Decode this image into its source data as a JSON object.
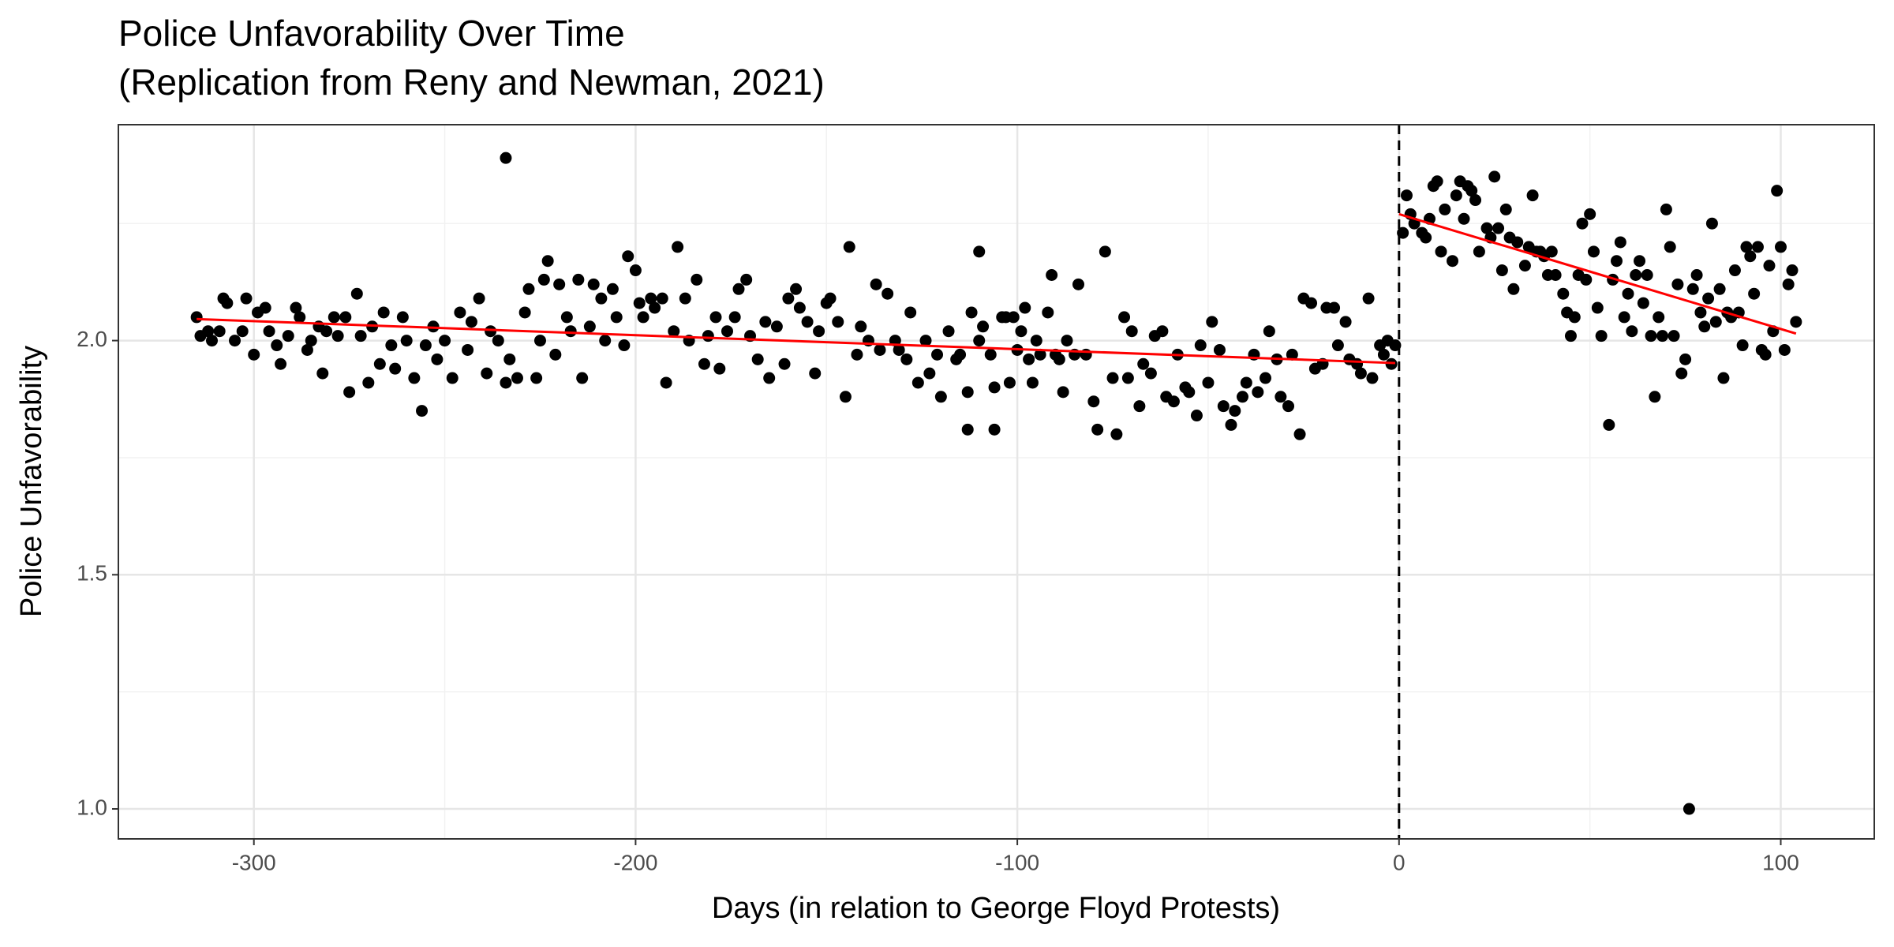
{
  "chart_data": {
    "type": "scatter",
    "title": "Police Unfavorability Over Time",
    "subtitle": "(Replication from Reny and Newman, 2021)",
    "x_label": "Days (in relation to George Floyd Protests)",
    "y_label": "Police Unfavorability",
    "xlim": [
      -335.5,
      124.5
    ],
    "ylim": [
      0.936,
      2.461
    ],
    "xticks": [
      -300,
      -200,
      -100,
      0,
      100
    ],
    "yticks": [
      {
        "value": 1,
        "label": "1.0"
      },
      {
        "value": 1.5,
        "label": "1.5"
      },
      {
        "value": 2,
        "label": "2.0"
      }
    ],
    "xminor": [
      -250,
      -150,
      -50,
      50
    ],
    "yminor": [
      1.25,
      1.75,
      2.25
    ],
    "grid": true,
    "vline": 0,
    "series": [
      {
        "color": "#000000",
        "x": [
          -315,
          -314,
          -312,
          -311,
          -309,
          -308,
          -307,
          -305,
          -303,
          -302,
          -300,
          -299,
          -297,
          -296,
          -294,
          -293,
          -291,
          -289,
          -288,
          -286,
          -285,
          -283,
          -282,
          -281,
          -279,
          -278,
          -276,
          -275,
          -273,
          -272,
          -270,
          -269,
          -267,
          -266,
          -264,
          -263,
          -261,
          -260,
          -258,
          -256,
          -255,
          -253,
          -252,
          -250,
          -248,
          -246,
          -244,
          -243,
          -241,
          -239,
          -238,
          -236,
          -234,
          -233,
          -231,
          -229,
          -228,
          -226,
          -225,
          -234,
          -224,
          -223,
          -221,
          -220,
          -218,
          -217,
          -215,
          -214,
          -212,
          -211,
          -209,
          -208,
          -206,
          -205,
          -203,
          -202,
          -200,
          -199,
          -198,
          -196,
          -195,
          -193,
          -192,
          -190,
          -189,
          -187,
          -186,
          -184,
          -182,
          -181,
          -179,
          -178,
          -176,
          -174,
          -173,
          -171,
          -170,
          -168,
          -166,
          -165,
          -163,
          -161,
          -160,
          -158,
          -157,
          -155,
          -153,
          -152,
          -150,
          -149,
          -147,
          -145,
          -144,
          -142,
          -141,
          -139,
          -137,
          -136,
          -134,
          -132,
          -131,
          -129,
          -128,
          -126,
          -124,
          -123,
          -121,
          -120,
          -118,
          -116,
          -115,
          -113,
          -112,
          -110,
          -109,
          -107,
          -106,
          -104,
          -102,
          -100,
          -99,
          -97,
          -95,
          -94,
          -92,
          -90,
          -89,
          -87,
          -85,
          -84,
          -82,
          -80,
          -79,
          -77,
          -75,
          -74,
          -72,
          -113,
          -106,
          -110,
          -91,
          -101,
          -103,
          -98,
          -96,
          -88,
          -71,
          -70,
          -68,
          -67,
          -65,
          -64,
          -62,
          -61,
          -59,
          -58,
          -56,
          -55,
          -53,
          -52,
          -50,
          -49,
          -47,
          -46,
          -44,
          -43,
          -41,
          -40,
          -38,
          -37,
          -35,
          -34,
          -32,
          -31,
          -29,
          -28,
          -26,
          -25,
          -23,
          -22,
          -20,
          -19,
          -17,
          -16,
          -14,
          -13,
          -11,
          -10,
          -8,
          -7,
          -5,
          -4,
          -3,
          -2,
          -1,
          1,
          2,
          3,
          4,
          6,
          7,
          8,
          9,
          10,
          11,
          12,
          14,
          15,
          16,
          17,
          18,
          19,
          20,
          21,
          23,
          24,
          25,
          26,
          27,
          28,
          29,
          30,
          31,
          33,
          34,
          35,
          36,
          37,
          38,
          39,
          40,
          41,
          43,
          44,
          45,
          46,
          47,
          48,
          49,
          50,
          51,
          52,
          53,
          55,
          56,
          57,
          58,
          59,
          60,
          61,
          62,
          63,
          64,
          65,
          66,
          67,
          68,
          69,
          70,
          71,
          72,
          73,
          74,
          75,
          76,
          77,
          78,
          79,
          80,
          81,
          82,
          83,
          84,
          85,
          86,
          87,
          88,
          89,
          90,
          91,
          92,
          93,
          94,
          95,
          96,
          97,
          98,
          99,
          100,
          101,
          102,
          103,
          104
        ],
        "values": [
          2.05,
          2.01,
          2.02,
          2.0,
          2.02,
          2.09,
          2.08,
          2.0,
          2.02,
          2.09,
          1.97,
          2.06,
          2.07,
          2.02,
          1.99,
          1.95,
          2.01,
          2.07,
          2.05,
          1.98,
          2.0,
          2.03,
          1.93,
          2.02,
          2.05,
          2.01,
          2.05,
          1.89,
          2.1,
          2.01,
          1.91,
          2.03,
          1.95,
          2.06,
          1.99,
          1.94,
          2.05,
          2.0,
          1.92,
          1.85,
          1.99,
          2.03,
          1.96,
          2.0,
          1.92,
          2.06,
          1.98,
          2.04,
          2.09,
          1.93,
          2.02,
          2.0,
          1.91,
          1.96,
          1.92,
          2.06,
          2.11,
          1.92,
          2.0,
          2.39,
          2.13,
          2.17,
          1.97,
          2.12,
          2.05,
          2.02,
          2.13,
          1.92,
          2.03,
          2.12,
          2.09,
          2.0,
          2.11,
          2.05,
          1.99,
          2.18,
          2.15,
          2.08,
          2.05,
          2.09,
          2.07,
          2.09,
          1.91,
          2.02,
          2.2,
          2.09,
          2.0,
          2.13,
          1.95,
          2.01,
          2.05,
          1.94,
          2.02,
          2.05,
          2.11,
          2.13,
          2.01,
          1.96,
          2.04,
          1.92,
          2.03,
          1.95,
          2.09,
          2.11,
          2.07,
          2.04,
          1.93,
          2.02,
          2.08,
          2.09,
          2.04,
          1.88,
          2.2,
          1.97,
          2.03,
          2.0,
          2.12,
          1.98,
          2.1,
          2.0,
          1.98,
          1.96,
          2.06,
          1.91,
          2.0,
          1.93,
          1.97,
          1.88,
          2.02,
          1.96,
          1.97,
          1.89,
          2.06,
          2.0,
          2.03,
          1.97,
          1.9,
          2.05,
          1.91,
          1.98,
          2.02,
          1.96,
          2.0,
          1.97,
          2.06,
          1.97,
          1.96,
          2.0,
          1.97,
          2.12,
          1.97,
          1.87,
          1.81,
          2.19,
          1.92,
          1.8,
          2.05,
          1.81,
          1.81,
          2.19,
          2.14,
          2.05,
          2.05,
          2.07,
          1.91,
          1.89,
          1.92,
          2.02,
          1.86,
          1.95,
          1.93,
          2.01,
          2.02,
          1.88,
          1.87,
          1.97,
          1.9,
          1.89,
          1.84,
          1.99,
          1.91,
          2.04,
          1.98,
          1.86,
          1.82,
          1.85,
          1.88,
          1.91,
          1.97,
          1.89,
          1.92,
          2.02,
          1.96,
          1.88,
          1.86,
          1.97,
          1.8,
          2.09,
          2.08,
          1.94,
          1.95,
          2.07,
          2.07,
          1.99,
          2.04,
          1.96,
          1.95,
          1.93,
          2.09,
          1.92,
          1.99,
          1.97,
          2.0,
          1.95,
          1.99,
          2.23,
          2.31,
          2.27,
          2.25,
          2.23,
          2.22,
          2.26,
          2.33,
          2.34,
          2.19,
          2.28,
          2.17,
          2.31,
          2.34,
          2.26,
          2.33,
          2.32,
          2.3,
          2.19,
          2.24,
          2.22,
          2.35,
          2.24,
          2.15,
          2.28,
          2.22,
          2.11,
          2.21,
          2.16,
          2.2,
          2.31,
          2.19,
          2.19,
          2.18,
          2.14,
          2.19,
          2.14,
          2.1,
          2.06,
          2.01,
          2.05,
          2.14,
          2.25,
          2.13,
          2.27,
          2.19,
          2.07,
          2.01,
          1.82,
          2.13,
          2.17,
          2.21,
          2.05,
          2.1,
          2.02,
          2.14,
          2.17,
          2.08,
          2.14,
          2.01,
          1.88,
          2.05,
          2.01,
          2.28,
          2.2,
          2.01,
          2.12,
          1.93,
          1.96,
          1.0,
          2.11,
          2.14,
          2.06,
          2.03,
          2.09,
          2.25,
          2.04,
          2.11,
          1.92,
          2.06,
          2.05,
          2.15,
          2.06,
          1.99,
          2.2,
          2.18,
          2.1,
          2.2,
          1.98,
          1.97,
          2.16,
          2.02,
          2.32,
          2.2,
          1.98,
          2.12,
          2.15,
          2.04
        ]
      }
    ],
    "trend_lines": [
      {
        "color": "#ff0000",
        "x": [
          -315,
          -1
        ],
        "y": [
          2.046,
          1.952
        ]
      },
      {
        "color": "#ff0000",
        "x": [
          0,
          104
        ],
        "y": [
          2.27,
          2.015
        ]
      }
    ]
  }
}
